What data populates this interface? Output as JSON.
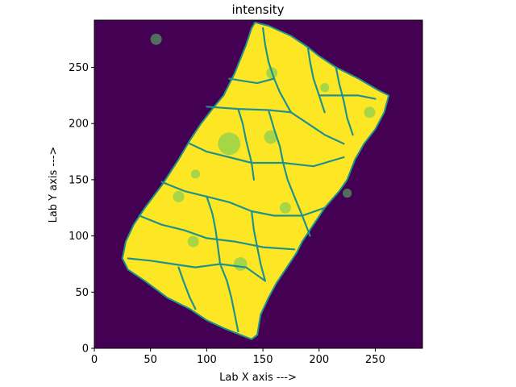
{
  "chart_data": {
    "type": "heatmap",
    "title": "intensity",
    "xlabel": "Lab X axis --->",
    "ylabel": "Lab Y axis --->",
    "xlim": [
      0,
      292
    ],
    "ylim": [
      0,
      292
    ],
    "x_ticks": [
      0,
      50,
      100,
      150,
      200,
      250
    ],
    "y_ticks": [
      0,
      50,
      100,
      150,
      200,
      250
    ],
    "x_tick_labels": [
      "0",
      "50",
      "100",
      "150",
      "200",
      "250"
    ],
    "y_tick_labels": [
      "0",
      "50",
      "100",
      "150",
      "200",
      "250"
    ],
    "colormap": "viridis",
    "colors": {
      "background": "#440154",
      "high": "#fde725",
      "boundary": "#21918c",
      "mid": "#5ec962"
    },
    "sample_outline": [
      [
        143,
        290
      ],
      [
        155,
        287
      ],
      [
        175,
        278
      ],
      [
        190,
        268
      ],
      [
        200,
        260
      ],
      [
        215,
        250
      ],
      [
        235,
        240
      ],
      [
        252,
        230
      ],
      [
        262,
        225
      ],
      [
        258,
        210
      ],
      [
        250,
        195
      ],
      [
        240,
        182
      ],
      [
        232,
        168
      ],
      [
        225,
        150
      ],
      [
        218,
        140
      ],
      [
        205,
        125
      ],
      [
        195,
        110
      ],
      [
        185,
        95
      ],
      [
        180,
        85
      ],
      [
        170,
        70
      ],
      [
        162,
        58
      ],
      [
        155,
        45
      ],
      [
        148,
        30
      ],
      [
        145,
        12
      ],
      [
        140,
        8
      ],
      [
        130,
        12
      ],
      [
        115,
        18
      ],
      [
        100,
        25
      ],
      [
        85,
        35
      ],
      [
        65,
        45
      ],
      [
        45,
        60
      ],
      [
        30,
        70
      ],
      [
        25,
        80
      ],
      [
        28,
        95
      ],
      [
        35,
        110
      ],
      [
        45,
        125
      ],
      [
        60,
        145
      ],
      [
        75,
        168
      ],
      [
        85,
        185
      ],
      [
        95,
        200
      ],
      [
        105,
        213
      ],
      [
        115,
        225
      ],
      [
        125,
        245
      ],
      [
        135,
        270
      ],
      [
        140,
        285
      ]
    ],
    "grain_boundaries": [
      [
        [
          100,
          215
        ],
        [
          128,
          213
        ],
        [
          155,
          212
        ],
        [
          175,
          210
        ]
      ],
      [
        [
          128,
          213
        ],
        [
          132,
          200
        ],
        [
          135,
          185
        ],
        [
          140,
          165
        ],
        [
          142,
          150
        ]
      ],
      [
        [
          155,
          212
        ],
        [
          160,
          195
        ],
        [
          165,
          180
        ],
        [
          168,
          165
        ]
      ],
      [
        [
          175,
          210
        ],
        [
          190,
          200
        ],
        [
          205,
          190
        ],
        [
          222,
          182
        ]
      ],
      [
        [
          85,
          182
        ],
        [
          100,
          175
        ],
        [
          120,
          170
        ],
        [
          140,
          165
        ],
        [
          168,
          165
        ],
        [
          195,
          162
        ],
        [
          222,
          170
        ]
      ],
      [
        [
          168,
          165
        ],
        [
          172,
          150
        ],
        [
          178,
          135
        ],
        [
          185,
          118
        ],
        [
          192,
          100
        ]
      ],
      [
        [
          60,
          148
        ],
        [
          80,
          140
        ],
        [
          100,
          135
        ],
        [
          120,
          130
        ],
        [
          140,
          122
        ],
        [
          160,
          118
        ],
        [
          185,
          118
        ],
        [
          205,
          125
        ]
      ],
      [
        [
          100,
          135
        ],
        [
          105,
          120
        ],
        [
          108,
          105
        ],
        [
          110,
          90
        ],
        [
          112,
          75
        ]
      ],
      [
        [
          140,
          122
        ],
        [
          142,
          105
        ],
        [
          145,
          90
        ],
        [
          148,
          75
        ],
        [
          152,
          60
        ]
      ],
      [
        [
          40,
          118
        ],
        [
          60,
          110
        ],
        [
          80,
          105
        ],
        [
          100,
          98
        ],
        [
          125,
          95
        ],
        [
          150,
          90
        ],
        [
          178,
          88
        ]
      ],
      [
        [
          30,
          80
        ],
        [
          50,
          78
        ],
        [
          70,
          75
        ],
        [
          90,
          72
        ],
        [
          112,
          75
        ],
        [
          135,
          72
        ],
        [
          152,
          60
        ]
      ],
      [
        [
          75,
          72
        ],
        [
          80,
          58
        ],
        [
          85,
          45
        ],
        [
          90,
          35
        ]
      ],
      [
        [
          112,
          75
        ],
        [
          118,
          60
        ],
        [
          122,
          45
        ],
        [
          125,
          30
        ],
        [
          128,
          15
        ]
      ],
      [
        [
          190,
          268
        ],
        [
          192,
          255
        ],
        [
          195,
          240
        ],
        [
          200,
          225
        ],
        [
          205,
          210
        ]
      ],
      [
        [
          215,
          250
        ],
        [
          218,
          235
        ],
        [
          222,
          220
        ],
        [
          225,
          205
        ],
        [
          230,
          190
        ]
      ],
      [
        [
          150,
          285
        ],
        [
          152,
          270
        ],
        [
          155,
          255
        ],
        [
          160,
          240
        ],
        [
          165,
          228
        ],
        [
          175,
          210
        ]
      ],
      [
        [
          120,
          240
        ],
        [
          132,
          238
        ],
        [
          145,
          236
        ],
        [
          160,
          240
        ]
      ],
      [
        [
          200,
          225
        ],
        [
          215,
          225
        ],
        [
          235,
          225
        ],
        [
          250,
          222
        ]
      ]
    ],
    "mid_patches": [
      [
        120,
        182,
        10
      ],
      [
        157,
        188,
        6
      ],
      [
        55,
        275,
        5
      ],
      [
        158,
        245,
        5
      ],
      [
        205,
        232,
        4
      ],
      [
        245,
        210,
        5
      ],
      [
        75,
        135,
        5
      ],
      [
        90,
        155,
        4
      ],
      [
        130,
        75,
        6
      ],
      [
        170,
        125,
        5
      ],
      [
        225,
        138,
        4
      ],
      [
        88,
        95,
        5
      ]
    ]
  }
}
